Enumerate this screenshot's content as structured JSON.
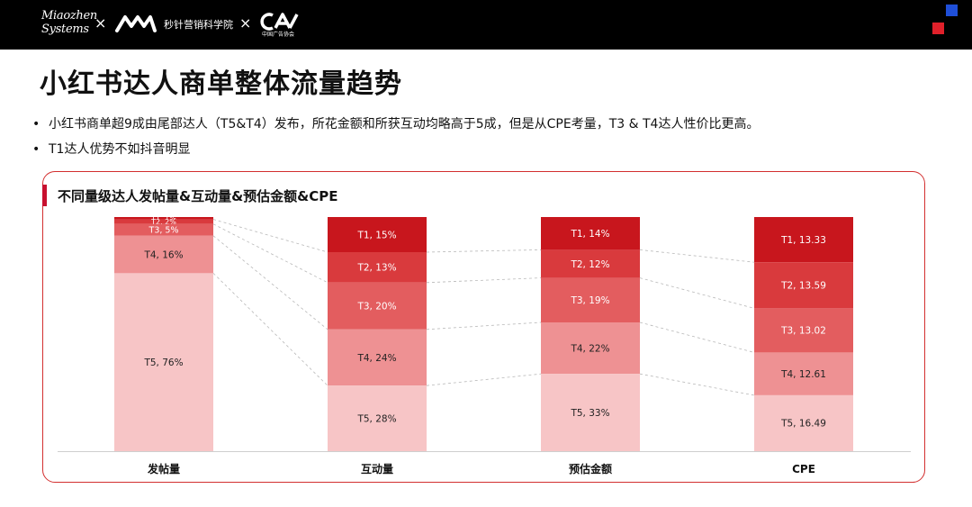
{
  "header": {
    "logo_miaozhen_line1": "Miaozhen",
    "logo_miaozhen_line2": "Systems",
    "separator": "×",
    "logo_academy": "秒针营销科学院",
    "logo_caa": "中国广告协会"
  },
  "page": {
    "title": "小红书达人商单整体流量趋势",
    "bullets": [
      "小红书商单超9成由尾部达人（T5&T4）发布，所花金额和所获互动均略高于5成，但是从CPE考量，T3 & T4达人性价比更高。",
      "T1达人优势不如抖音明显"
    ]
  },
  "colors": {
    "T1": "#c8161d",
    "T2": "#d93a3d",
    "T3": "#e35d5f",
    "T4": "#ee9193",
    "T5": "#f7c5c6",
    "card_border": "#d32f2f",
    "accent": "#c8102e"
  },
  "chart_data": {
    "type": "bar",
    "subtype": "100% stacked",
    "title": "不同量级达人发帖量&互动量&预估金额&CPE",
    "categories": [
      "发帖量",
      "互动量",
      "预估金额",
      "CPE"
    ],
    "series": [
      {
        "name": "T1",
        "values": [
          1,
          15,
          14,
          13.33
        ],
        "labels": [
          "T1, 1%",
          "T1, 15%",
          "T1, 14%",
          "T1, 13.33"
        ]
      },
      {
        "name": "T2",
        "values": [
          2,
          13,
          12,
          13.59
        ],
        "labels": [
          "T2, 2%",
          "T2, 13%",
          "T2, 12%",
          "T2, 13.59"
        ]
      },
      {
        "name": "T3",
        "values": [
          5,
          20,
          19,
          13.02
        ],
        "labels": [
          "T3, 5%",
          "T3, 20%",
          "T3, 19%",
          "T3, 13.02"
        ]
      },
      {
        "name": "T4",
        "values": [
          16,
          24,
          22,
          12.61
        ],
        "labels": [
          "T4, 16%",
          "T4, 24%",
          "T4, 22%",
          "T4, 12.61"
        ]
      },
      {
        "name": "T5",
        "values": [
          76,
          28,
          33,
          16.49
        ],
        "labels": [
          "T5, 76%",
          "T5, 28%",
          "T5, 33%",
          "T5, 16.49"
        ]
      }
    ],
    "stack_order": "T1 on top, T5 at bottom",
    "series_connectors": "dashed lines between segment boundaries",
    "legend": "none",
    "grid": false
  }
}
